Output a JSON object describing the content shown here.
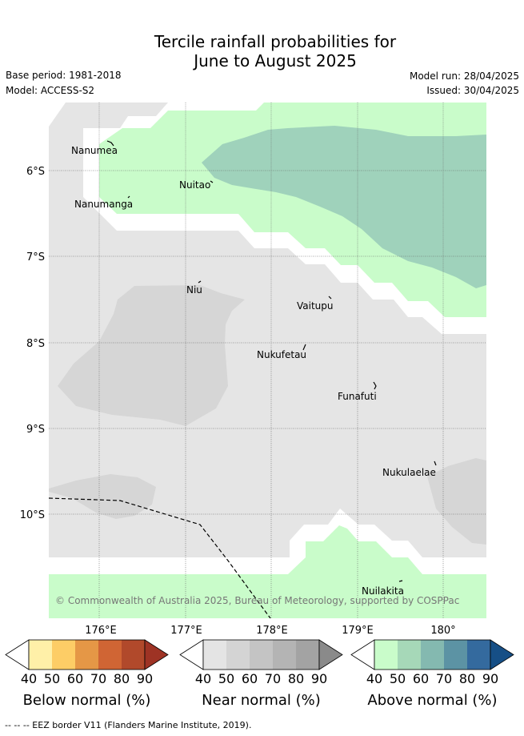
{
  "title_line1": "Tercile rainfall probabilities for",
  "title_line2": "June to August 2025",
  "base_period": "Base period: 1981-2018",
  "model": "Model: ACCESS-S2",
  "model_run": "Model run: 28/04/2025",
  "issued": "Issued: 30/04/2025",
  "copyright": "© Commonwealth of Australia 2025, Bureau of Meteorology, supported by COSPPac",
  "footer": "--  --  -- EEZ border V11 (Flanders Marine Institute, 2019).",
  "map": {
    "lon_labels": [
      "176°E",
      "177°E",
      "178°E",
      "179°E",
      "180°"
    ],
    "lat_labels": [
      "6°S",
      "7°S",
      "8°S",
      "9°S",
      "10°S"
    ],
    "places": [
      "Nanumea",
      "Nuitao",
      "Nanumanga",
      "Niu",
      "Vaitupu",
      "Nukufetau",
      "Funafuti",
      "Nukulaelae",
      "Nuilakita"
    ]
  },
  "colorbars": [
    {
      "title": "Below normal (%)",
      "ticks": [
        "40",
        "50",
        "60",
        "70",
        "80",
        "90"
      ],
      "colors": [
        "#ffffff",
        "#fff0a8",
        "#fdcd66",
        "#e59746",
        "#d06534",
        "#b1492b",
        "#9e3324"
      ]
    },
    {
      "title": "Near normal (%)",
      "ticks": [
        "40",
        "50",
        "60",
        "70",
        "80",
        "90"
      ],
      "colors": [
        "#ffffff",
        "#e4e4e4",
        "#d4d4d4",
        "#c4c4c4",
        "#b4b4b4",
        "#a3a3a3",
        "#8a8a8a"
      ]
    },
    {
      "title": "Above normal (%)",
      "ticks": [
        "40",
        "50",
        "60",
        "70",
        "80",
        "90"
      ],
      "colors": [
        "#ffffff",
        "#c9fcca",
        "#a6d8b8",
        "#84b9b0",
        "#5c93a4",
        "#346a9e",
        "#164f86"
      ]
    }
  ]
}
